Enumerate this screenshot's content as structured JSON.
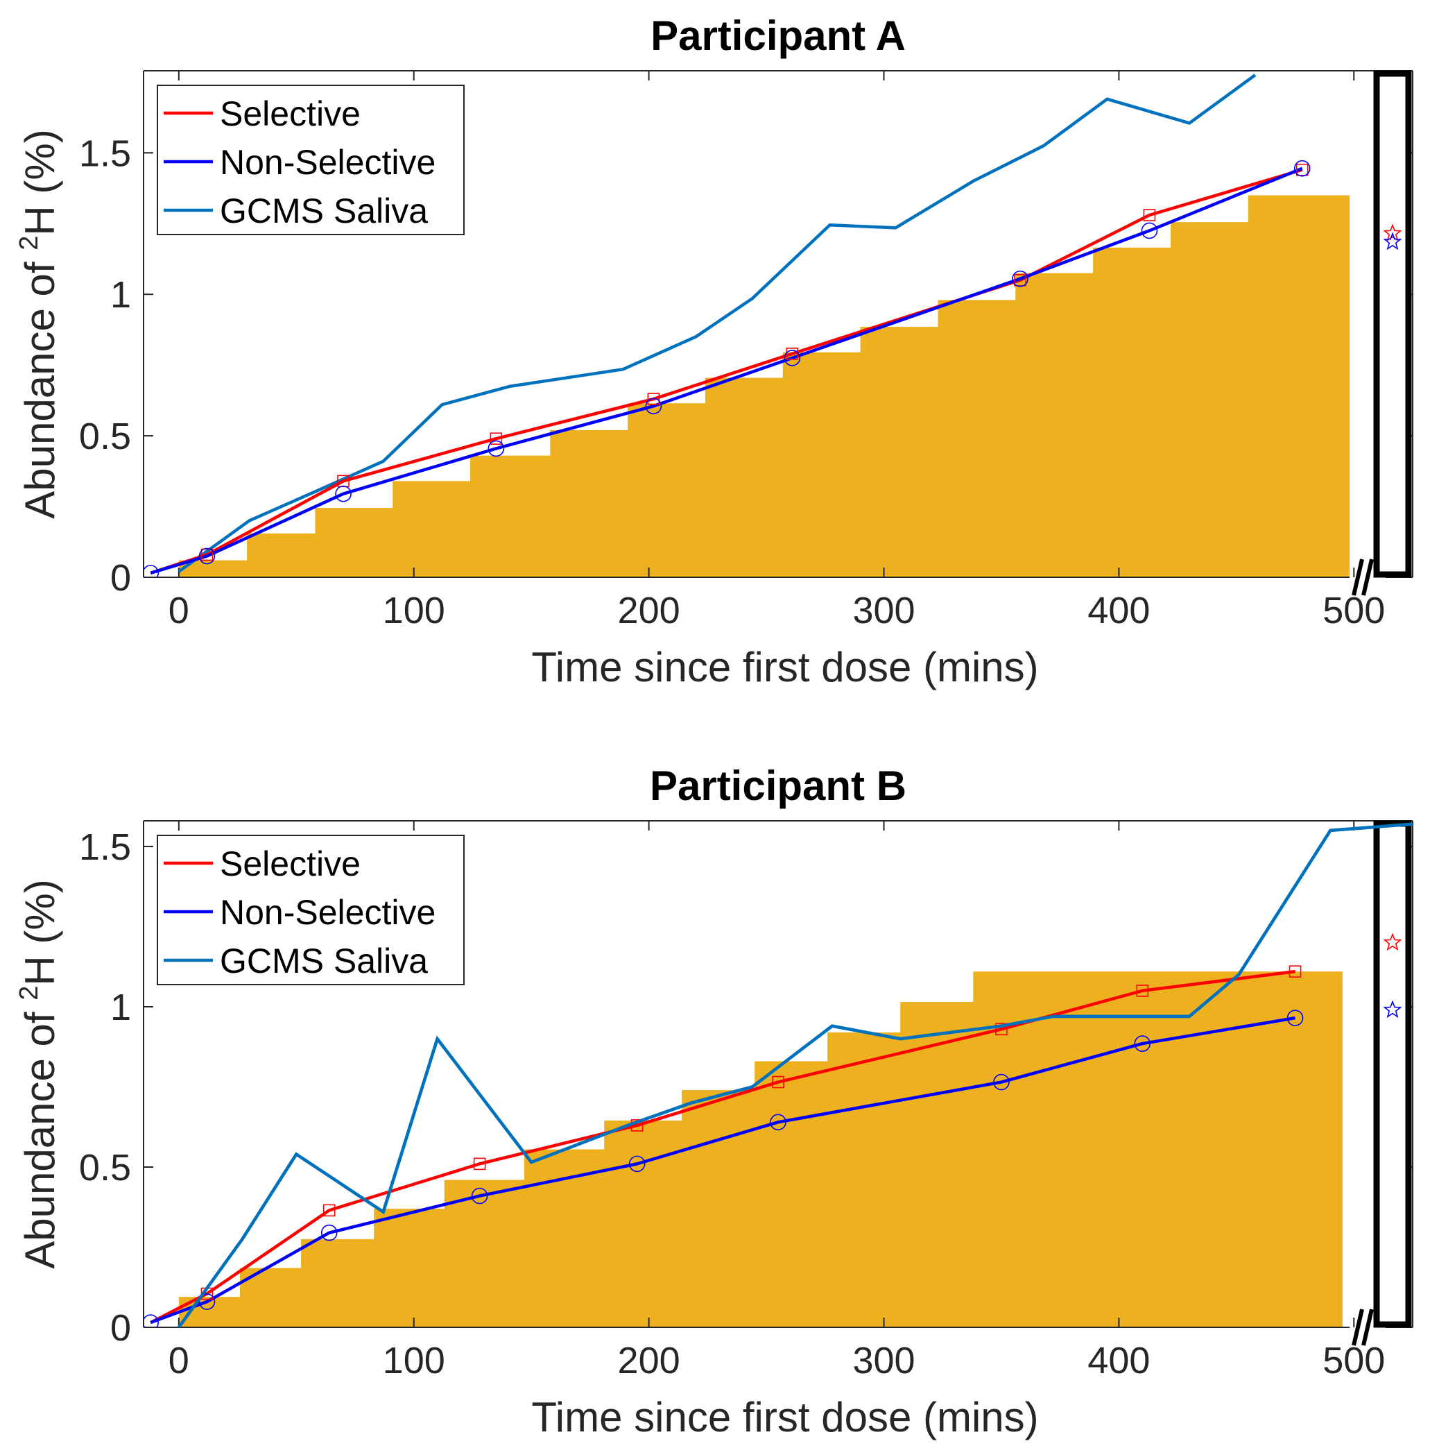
{
  "colors": {
    "selective": "#ff0000",
    "non_selective": "#0000ff",
    "gcms": "#0072bd",
    "bars": "#edb120"
  },
  "chart_data": [
    {
      "type": "line",
      "title": "Participant A",
      "xlabel": "Time since first dose (mins)",
      "ylabel_prefix": "Abundance of ",
      "ylabel_sup": "2",
      "ylabel_suffix": "H (%)",
      "xlim": [
        -15,
        525
      ],
      "ylim": [
        0,
        1.79
      ],
      "x_ticks": [
        0,
        100,
        200,
        300,
        400,
        500
      ],
      "x_tick_labels": [
        "0",
        "100",
        "200",
        "300",
        "400",
        "500"
      ],
      "y_ticks": [
        0,
        0.5,
        1,
        1.5
      ],
      "y_tick_labels": [
        "0",
        "0.5",
        "1",
        "1.5"
      ],
      "axis_break_x": 500,
      "legend": [
        "Selective",
        "Non-Selective",
        "GCMS Saliva"
      ],
      "legend_position": "top-left",
      "bars": {
        "edges": [
          0,
          29,
          58,
          91,
          124,
          158,
          191,
          224,
          257,
          290,
          323,
          356,
          389,
          422,
          455,
          498
        ],
        "values": [
          0.06,
          0.155,
          0.245,
          0.34,
          0.43,
          0.52,
          0.615,
          0.705,
          0.795,
          0.885,
          0.98,
          1.075,
          1.165,
          1.255,
          1.35,
          1.445
        ]
      },
      "series": [
        {
          "name": "Selective",
          "x": [
            -12,
            12,
            70,
            135,
            202,
            261,
            358,
            413,
            478
          ],
          "y": [
            0.015,
            0.08,
            0.34,
            0.49,
            0.63,
            0.79,
            1.05,
            1.28,
            1.44
          ]
        },
        {
          "name": "Non-Selective",
          "x": [
            -12,
            12,
            70,
            135,
            202,
            261,
            358,
            413,
            478
          ],
          "y": [
            0.015,
            0.075,
            0.295,
            0.455,
            0.605,
            0.775,
            1.055,
            1.225,
            1.445
          ]
        },
        {
          "name": "GCMS Saliva",
          "x": [
            0,
            30,
            60,
            87,
            112,
            141,
            189,
            220,
            244,
            277,
            305,
            338,
            368,
            395,
            430,
            458
          ],
          "y": [
            0.02,
            0.2,
            0.31,
            0.41,
            0.61,
            0.675,
            0.735,
            0.85,
            0.985,
            1.245,
            1.235,
            1.4,
            1.525,
            1.69,
            1.605,
            1.775
          ]
        }
      ],
      "stars": {
        "selective": 1.215,
        "non_selective": 1.185
      }
    },
    {
      "type": "line",
      "title": "Participant B",
      "xlabel": "Time since first dose (mins)",
      "ylabel_prefix": "Abundance of ",
      "ylabel_sup": "2",
      "ylabel_suffix": "H (%)",
      "xlim": [
        -15,
        525
      ],
      "ylim": [
        0,
        1.58
      ],
      "x_ticks": [
        0,
        100,
        200,
        300,
        400,
        500
      ],
      "x_tick_labels": [
        "0",
        "100",
        "200",
        "300",
        "400",
        "500"
      ],
      "y_ticks": [
        0,
        0.5,
        1,
        1.5
      ],
      "y_tick_labels": [
        "0",
        "0.5",
        "1",
        "1.5"
      ],
      "axis_break_x": 500,
      "legend": [
        "Selective",
        "Non-Selective",
        "GCMS Saliva"
      ],
      "legend_position": "top-left",
      "bars": {
        "edges": [
          0,
          26,
          52,
          83,
          113,
          147,
          181,
          214,
          245,
          276,
          307,
          338,
          495
        ],
        "values": [
          0.095,
          0.185,
          0.275,
          0.37,
          0.46,
          0.555,
          0.645,
          0.74,
          0.83,
          0.92,
          1.015,
          1.11
        ]
      },
      "series": [
        {
          "name": "Selective",
          "x": [
            -12,
            12,
            64,
            128,
            195,
            255,
            350,
            410,
            475
          ],
          "y": [
            0.015,
            0.105,
            0.365,
            0.51,
            0.63,
            0.765,
            0.93,
            1.05,
            1.11
          ]
        },
        {
          "name": "Non-Selective",
          "x": [
            -12,
            12,
            64,
            128,
            195,
            255,
            350,
            410,
            475
          ],
          "y": [
            0.015,
            0.08,
            0.295,
            0.41,
            0.51,
            0.64,
            0.765,
            0.885,
            0.965
          ]
        },
        {
          "name": "GCMS Saliva",
          "x": [
            0,
            27,
            50,
            87,
            110,
            150,
            191,
            218,
            244,
            278,
            307,
            350,
            372,
            430,
            451,
            490,
            525
          ],
          "y": [
            0,
            0.275,
            0.54,
            0.36,
            0.9,
            0.515,
            0.63,
            0.7,
            0.75,
            0.94,
            0.9,
            0.94,
            0.97,
            0.97,
            1.1,
            1.55,
            1.57
          ]
        }
      ],
      "stars": {
        "selective": 1.2,
        "non_selective": 0.99
      }
    }
  ]
}
